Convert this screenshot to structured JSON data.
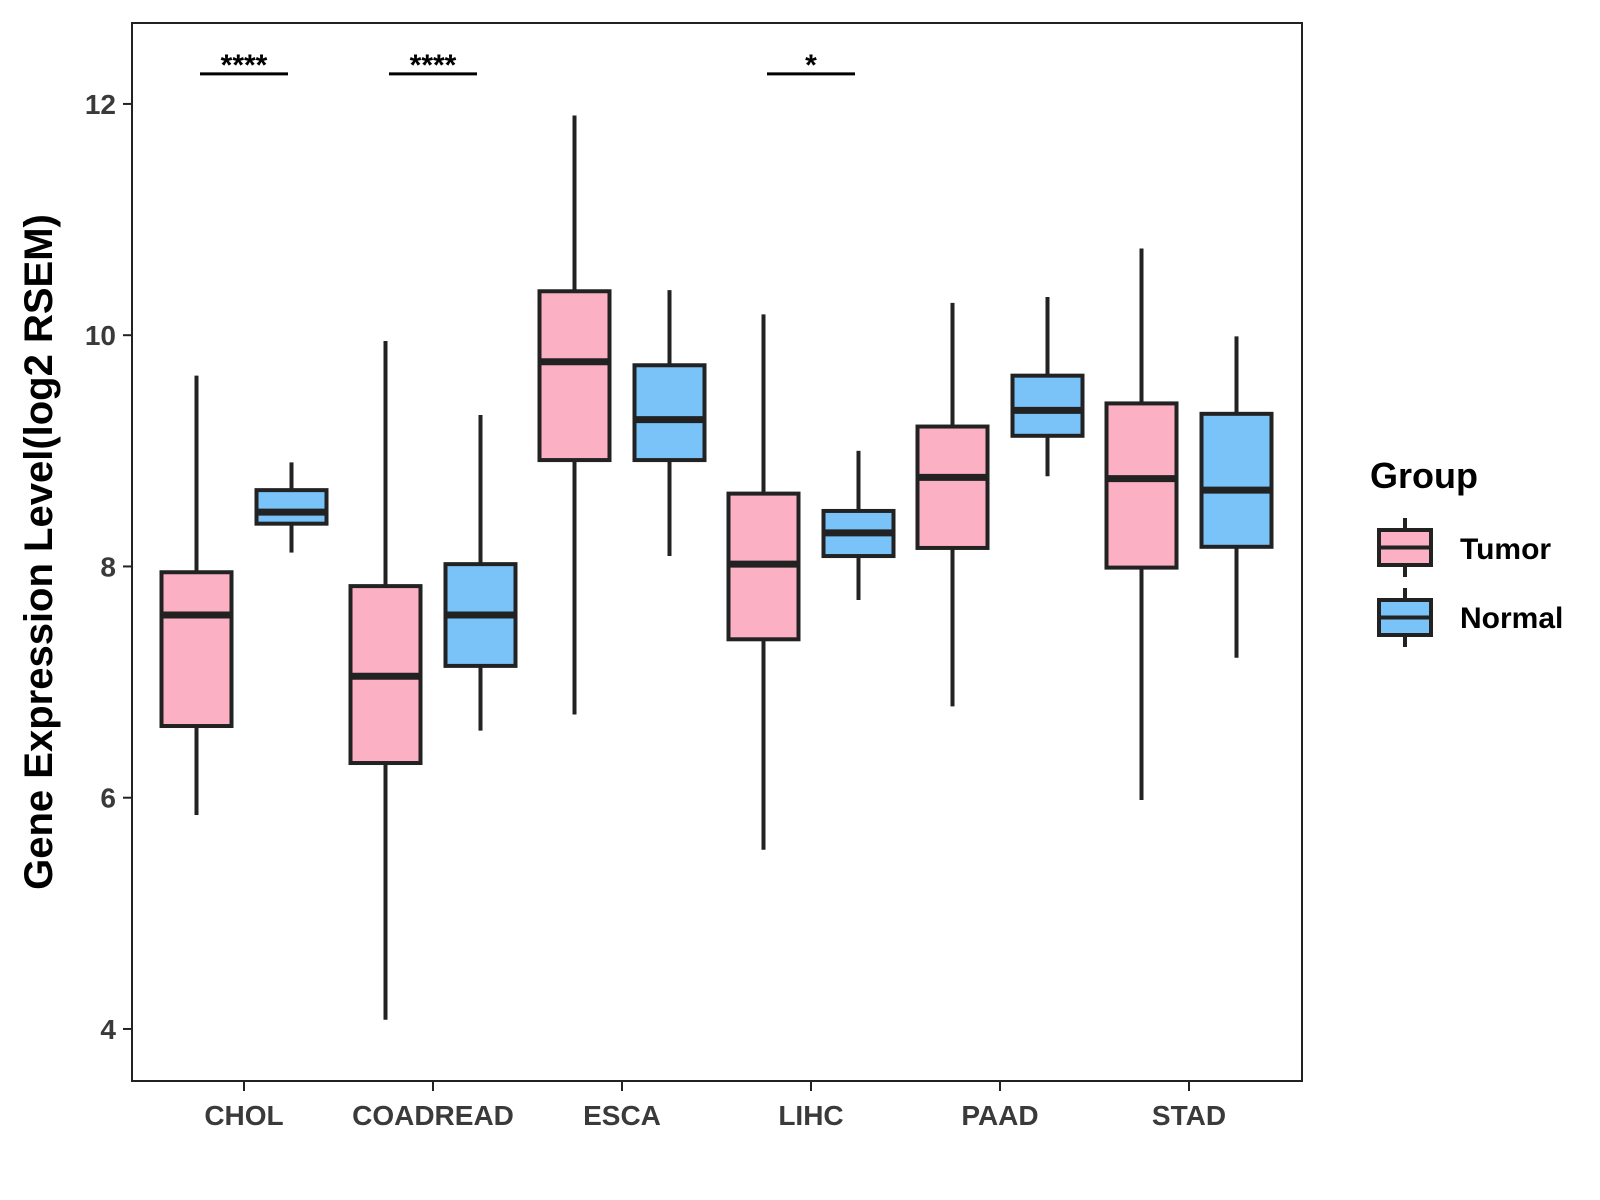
{
  "chart_data": {
    "type": "boxplot",
    "title": "",
    "xlabel": "",
    "ylabel": "Gene Expression Level(log2 RSEM)",
    "ylim": [
      3.55,
      12.7
    ],
    "yticks": [
      4,
      6,
      8,
      10,
      12
    ],
    "grid": false,
    "legend": {
      "title": "Group",
      "position": "right",
      "entries": [
        "Tumor",
        "Normal"
      ]
    },
    "colors": {
      "Tumor": "#FBB0C3",
      "Normal": "#7AC3F8",
      "outline": "#222222"
    },
    "categories": [
      "CHOL",
      "COADREAD",
      "ESCA",
      "LIHC",
      "PAAD",
      "STAD"
    ],
    "series": [
      {
        "name": "Tumor",
        "boxes": [
          {
            "whisker_low": 5.85,
            "q1": 6.62,
            "median": 7.58,
            "q3": 7.95,
            "whisker_high": 9.65
          },
          {
            "whisker_low": 4.08,
            "q1": 6.3,
            "median": 7.05,
            "q3": 7.83,
            "whisker_high": 9.95
          },
          {
            "whisker_low": 6.72,
            "q1": 8.92,
            "median": 9.77,
            "q3": 10.38,
            "whisker_high": 11.9
          },
          {
            "whisker_low": 5.55,
            "q1": 7.37,
            "median": 8.02,
            "q3": 8.63,
            "whisker_high": 10.18
          },
          {
            "whisker_low": 6.79,
            "q1": 8.16,
            "median": 8.77,
            "q3": 9.21,
            "whisker_high": 10.28
          },
          {
            "whisker_low": 5.98,
            "q1": 7.99,
            "median": 8.76,
            "q3": 9.41,
            "whisker_high": 10.75
          }
        ]
      },
      {
        "name": "Normal",
        "boxes": [
          {
            "whisker_low": 8.12,
            "q1": 8.37,
            "median": 8.47,
            "q3": 8.66,
            "whisker_high": 8.9
          },
          {
            "whisker_low": 6.58,
            "q1": 7.14,
            "median": 7.58,
            "q3": 8.02,
            "whisker_high": 9.31
          },
          {
            "whisker_low": 8.09,
            "q1": 8.92,
            "median": 9.27,
            "q3": 9.74,
            "whisker_high": 10.39
          },
          {
            "whisker_low": 7.71,
            "q1": 8.09,
            "median": 8.29,
            "q3": 8.48,
            "whisker_high": 9.0
          },
          {
            "whisker_low": 8.78,
            "q1": 9.13,
            "median": 9.35,
            "q3": 9.65,
            "whisker_high": 10.33
          },
          {
            "whisker_low": 7.21,
            "q1": 8.17,
            "median": 8.66,
            "q3": 9.32,
            "whisker_high": 9.99
          }
        ]
      }
    ],
    "significance": [
      {
        "category": "CHOL",
        "label": "****"
      },
      {
        "category": "COADREAD",
        "label": "****"
      },
      {
        "category": "LIHC",
        "label": "*"
      }
    ]
  }
}
